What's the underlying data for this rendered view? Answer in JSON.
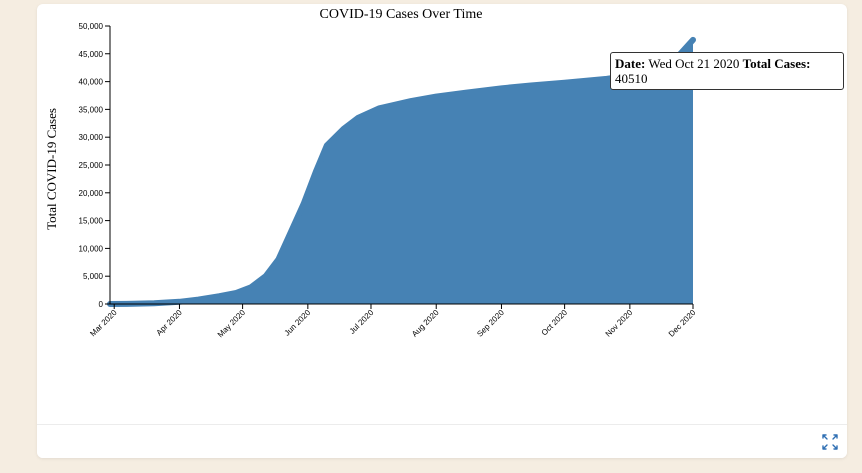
{
  "chart_data": {
    "type": "area",
    "title": "COVID-19 Cases Over Time",
    "ylabel": "Total COVID-19 Cases",
    "xlabel": "",
    "ylim": [
      0,
      50000
    ],
    "yticks": [
      "0",
      "5,000",
      "10,000",
      "15,000",
      "20,000",
      "25,000",
      "30,000",
      "35,000",
      "40,000",
      "45,000",
      "50,000"
    ],
    "ytick_values": [
      0,
      5000,
      10000,
      15000,
      20000,
      25000,
      30000,
      35000,
      40000,
      45000,
      50000
    ],
    "xticks": [
      "Mar 2020",
      "Apr 2020",
      "May 2020",
      "Jun 2020",
      "Jul 2020",
      "Aug 2020",
      "Sep 2020",
      "Oct 2020",
      "Nov 2020",
      "Dec 2020"
    ],
    "xtick_dates": [
      "2020-03-01",
      "2020-04-01",
      "2020-05-01",
      "2020-06-01",
      "2020-07-01",
      "2020-08-01",
      "2020-09-01",
      "2020-10-01",
      "2020-11-01",
      "2020-12-01"
    ],
    "xlim": [
      "2020-02-28",
      "2020-12-01"
    ],
    "color": "#4682b4",
    "points": [
      [
        "2020-02-28",
        0
      ],
      [
        "2020-03-10",
        30
      ],
      [
        "2020-03-20",
        120
      ],
      [
        "2020-04-01",
        400
      ],
      [
        "2020-04-10",
        800
      ],
      [
        "2020-04-20",
        1400
      ],
      [
        "2020-04-28",
        2000
      ],
      [
        "2020-05-05",
        3000
      ],
      [
        "2020-05-12",
        5000
      ],
      [
        "2020-05-18",
        8000
      ],
      [
        "2020-05-24",
        13000
      ],
      [
        "2020-05-30",
        18000
      ],
      [
        "2020-06-05",
        24000
      ],
      [
        "2020-06-10",
        28500
      ],
      [
        "2020-06-18",
        31500
      ],
      [
        "2020-06-25",
        33500
      ],
      [
        "2020-07-05",
        35200
      ],
      [
        "2020-07-20",
        36500
      ],
      [
        "2020-08-01",
        37300
      ],
      [
        "2020-08-15",
        38000
      ],
      [
        "2020-09-01",
        38800
      ],
      [
        "2020-09-15",
        39300
      ],
      [
        "2020-10-01",
        39800
      ],
      [
        "2020-10-21",
        40510
      ],
      [
        "2020-11-05",
        41300
      ],
      [
        "2020-11-15",
        42200
      ],
      [
        "2020-11-25",
        45000
      ],
      [
        "2020-12-01",
        47500
      ]
    ]
  },
  "tooltip": {
    "date_label": "Date:",
    "date_value": "Wed Oct 21 2020",
    "cases_label": "Total Cases:",
    "cases_value": "40510"
  },
  "footer": {
    "expand_icon": "expand-arrows-icon"
  }
}
